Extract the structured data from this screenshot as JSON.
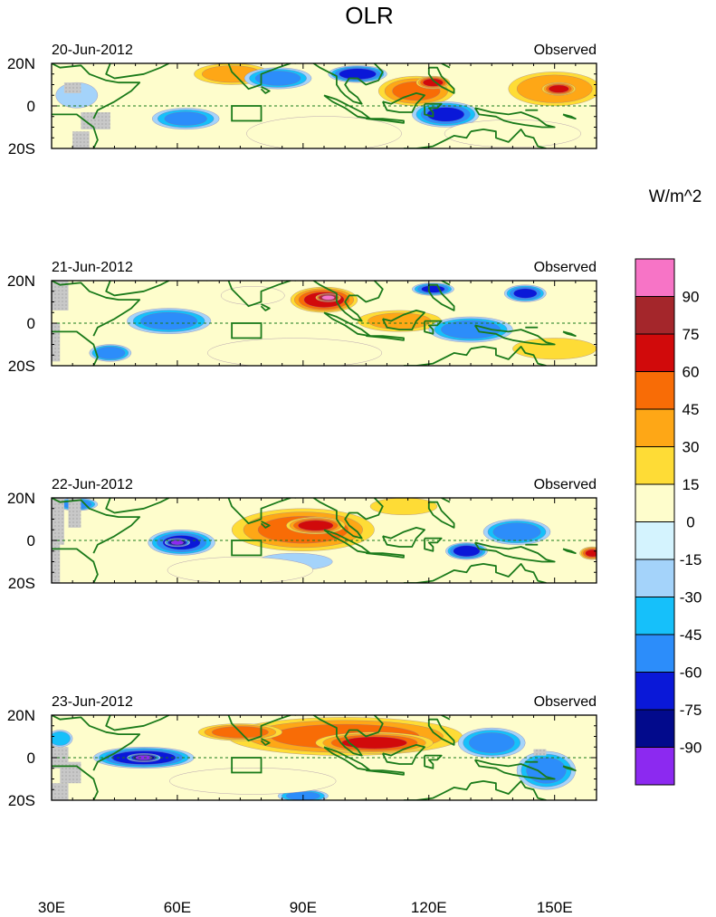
{
  "chart_data": {
    "type": "heatmap",
    "title": "OLR",
    "variable": "Outgoing longwave radiation anomaly",
    "units_label": "W/m^2",
    "legend_position": "right",
    "x_range": [
      30,
      160
    ],
    "y_range": [
      -20,
      20
    ],
    "x_ticks": [
      {
        "value": 30,
        "label": "30E"
      },
      {
        "value": 60,
        "label": "60E"
      },
      {
        "value": 90,
        "label": "90E"
      },
      {
        "value": 120,
        "label": "120E"
      },
      {
        "value": 150,
        "label": "150E"
      }
    ],
    "y_ticks": [
      {
        "value": 20,
        "label": "20N"
      },
      {
        "value": 0,
        "label": "0"
      },
      {
        "value": -20,
        "label": "20S"
      }
    ],
    "colorbar": {
      "labels": [
        "90",
        "75",
        "60",
        "45",
        "30",
        "15",
        "0",
        "-15",
        "-30",
        "-45",
        "-60",
        "-75",
        "-90"
      ],
      "colors": [
        "#f774c6",
        "#a4262b",
        "#d10a0b",
        "#f86c06",
        "#fea716",
        "#fedc36",
        "#fefdcc",
        "#d4f3fe",
        "#a4d3fa",
        "#16c0fa",
        "#2c8dfa",
        "#0a18d8",
        "#020a8c",
        "#8c29f0"
      ]
    },
    "highlight_box": {
      "lon": [
        73,
        80
      ],
      "lat": [
        -7,
        0
      ]
    },
    "panels": [
      {
        "date": "20-Jun-2012",
        "label": "Observed",
        "blobs": [
          {
            "lon": 73,
            "lat": 15,
            "rx": 9,
            "ry": 5,
            "value": 35
          },
          {
            "lon": 84,
            "lat": 13,
            "rx": 8,
            "ry": 5,
            "value": -50
          },
          {
            "lon": 103,
            "lat": 15,
            "rx": 7,
            "ry": 4,
            "value": -70
          },
          {
            "lon": 117,
            "lat": 7,
            "rx": 9,
            "ry": 7,
            "value": 45
          },
          {
            "lon": 121,
            "lat": 11,
            "rx": 4,
            "ry": 3,
            "value": 65
          },
          {
            "lon": 124,
            "lat": -4,
            "rx": 8,
            "ry": 6,
            "value": -60
          },
          {
            "lon": 150,
            "lat": 8,
            "rx": 11,
            "ry": 8,
            "value": 40
          },
          {
            "lon": 151,
            "lat": 8,
            "rx": 4,
            "ry": 3,
            "value": 65
          },
          {
            "lon": 62,
            "lat": -6,
            "rx": 8,
            "ry": 5,
            "value": -45
          },
          {
            "lon": 36,
            "lat": 5,
            "rx": 5,
            "ry": 6,
            "value": -25
          },
          {
            "lon": 95,
            "lat": -13,
            "rx": 16,
            "ry": 7,
            "value": 10
          },
          {
            "lon": 140,
            "lat": -13,
            "rx": 15,
            "ry": 6,
            "value": 12
          }
        ]
      },
      {
        "date": "21-Jun-2012",
        "label": "Observed",
        "blobs": [
          {
            "lon": 95,
            "lat": 11,
            "rx": 8,
            "ry": 6,
            "value": 65
          },
          {
            "lon": 96,
            "lat": 12,
            "rx": 3,
            "ry": 2,
            "value": 95
          },
          {
            "lon": 113,
            "lat": 1,
            "rx": 10,
            "ry": 5,
            "value": 30
          },
          {
            "lon": 58,
            "lat": 1,
            "rx": 10,
            "ry": 6,
            "value": -50
          },
          {
            "lon": 44,
            "lat": -14,
            "rx": 5,
            "ry": 4,
            "value": -55
          },
          {
            "lon": 130,
            "lat": -3,
            "rx": 10,
            "ry": 6,
            "value": -55
          },
          {
            "lon": 143,
            "lat": 14,
            "rx": 5,
            "ry": 4,
            "value": -60
          },
          {
            "lon": 121,
            "lat": 16,
            "rx": 5,
            "ry": 3,
            "value": -60
          },
          {
            "lon": 78,
            "lat": 13,
            "rx": 7,
            "ry": 4,
            "value": 12
          },
          {
            "lon": 88,
            "lat": -14,
            "rx": 18,
            "ry": 6,
            "value": 10
          },
          {
            "lon": 150,
            "lat": -12,
            "rx": 10,
            "ry": 5,
            "value": 20
          }
        ]
      },
      {
        "date": "22-Jun-2012",
        "label": "Observed",
        "blobs": [
          {
            "lon": 90,
            "lat": 5,
            "rx": 17,
            "ry": 10,
            "value": 45
          },
          {
            "lon": 93,
            "lat": 7,
            "rx": 7,
            "ry": 4,
            "value": 65
          },
          {
            "lon": 61,
            "lat": -1,
            "rx": 8,
            "ry": 6,
            "value": -60
          },
          {
            "lon": 60,
            "lat": -1,
            "rx": 3,
            "ry": 2,
            "value": -95
          },
          {
            "lon": 141,
            "lat": 4,
            "rx": 8,
            "ry": 6,
            "value": -55
          },
          {
            "lon": 129,
            "lat": -5,
            "rx": 5,
            "ry": 4,
            "value": -70
          },
          {
            "lon": 88,
            "lat": -10,
            "rx": 9,
            "ry": 4,
            "value": -25
          },
          {
            "lon": 36,
            "lat": 17,
            "rx": 5,
            "ry": 3,
            "value": -55
          },
          {
            "lon": 75,
            "lat": -14,
            "rx": 14,
            "ry": 5,
            "value": 8
          },
          {
            "lon": 114,
            "lat": 16,
            "rx": 8,
            "ry": 4,
            "value": 20
          },
          {
            "lon": 159,
            "lat": -6,
            "rx": 3,
            "ry": 3,
            "value": 60
          }
        ]
      },
      {
        "date": "23-Jun-2012",
        "label": "Observed",
        "blobs": [
          {
            "lon": 100,
            "lat": 10,
            "rx": 28,
            "ry": 9,
            "value": 45
          },
          {
            "lon": 107,
            "lat": 7,
            "rx": 14,
            "ry": 5,
            "value": 60
          },
          {
            "lon": 75,
            "lat": 12,
            "rx": 10,
            "ry": 4,
            "value": 50
          },
          {
            "lon": 52,
            "lat": 0,
            "rx": 12,
            "ry": 5,
            "value": -70
          },
          {
            "lon": 52,
            "lat": 0,
            "rx": 4,
            "ry": 2,
            "value": -95
          },
          {
            "lon": 135,
            "lat": 7,
            "rx": 8,
            "ry": 7,
            "value": -50
          },
          {
            "lon": 148,
            "lat": -6,
            "rx": 7,
            "ry": 9,
            "value": -50
          },
          {
            "lon": 90,
            "lat": -18,
            "rx": 6,
            "ry": 3,
            "value": -50
          },
          {
            "lon": 32,
            "lat": 9,
            "rx": 3,
            "ry": 4,
            "value": -40
          },
          {
            "lon": 78,
            "lat": -11,
            "rx": 16,
            "ry": 5,
            "value": 8
          }
        ]
      }
    ]
  }
}
